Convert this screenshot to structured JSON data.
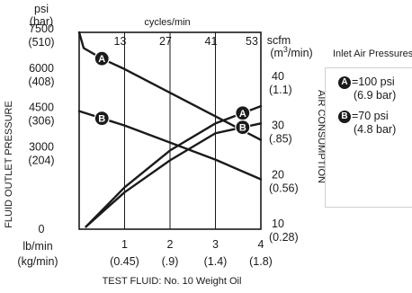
{
  "chart_data": {
    "type": "line",
    "title": "",
    "left_axis": {
      "unit_top": "psi",
      "unit_bottom": "(bar)",
      "title": "FLUID OUTLET PRESSURE",
      "ticks": [
        {
          "value": 0,
          "psi": "0",
          "bar": ""
        },
        {
          "value": 3000,
          "psi": "3000",
          "bar": "(204)"
        },
        {
          "value": 4500,
          "psi": "4500",
          "bar": "(306)"
        },
        {
          "value": 6000,
          "psi": "6000",
          "bar": "(408)"
        },
        {
          "value": 7500,
          "psi": "7500",
          "bar": "(510)"
        }
      ],
      "range": [
        0,
        7500
      ]
    },
    "right_axis": {
      "unit_top": "scfm",
      "unit_bottom_prefix": "(m",
      "unit_bottom_sup": "3",
      "unit_bottom_suffix": "/min)",
      "title": "AIR CONSUMPTION",
      "ticks": [
        {
          "value": 10,
          "scfm": "10",
          "m3": "(0.28)"
        },
        {
          "value": 20,
          "scfm": "20",
          "m3": "(0.56)"
        },
        {
          "value": 30,
          "scfm": "30",
          "m3": "(.85)"
        },
        {
          "value": 40,
          "scfm": "40",
          "m3": "(1.1)"
        }
      ],
      "range": [
        10,
        50
      ]
    },
    "top_axis": {
      "label": "cycles/min",
      "ticks": [
        "13",
        "27",
        "41",
        "53"
      ]
    },
    "bottom_axis": {
      "unit_top": "lb/min",
      "unit_bottom": "(kg/min)",
      "title": "TEST FLUID: No. 10 Weight Oil",
      "ticks": [
        {
          "value": 1,
          "lb": "1",
          "kg": "(0.45)"
        },
        {
          "value": 2,
          "lb": "2",
          "kg": "(.9)"
        },
        {
          "value": 3,
          "lb": "3",
          "kg": "(1.4)"
        },
        {
          "value": 4,
          "lb": "4",
          "kg": "(1.8)"
        }
      ],
      "range": [
        0,
        4
      ]
    },
    "series": [
      {
        "name": "A",
        "axis": "left",
        "points": [
          [
            0.0,
            7500
          ],
          [
            0.1,
            6900
          ],
          [
            0.5,
            6500
          ],
          [
            1.0,
            6100
          ],
          [
            2.0,
            5200
          ],
          [
            3.0,
            4300
          ],
          [
            4.0,
            3400
          ]
        ],
        "marker_at": 0.5
      },
      {
        "name": "B",
        "axis": "left",
        "points": [
          [
            0.0,
            4500
          ],
          [
            1.0,
            3950
          ],
          [
            2.0,
            3300
          ],
          [
            3.0,
            2650
          ],
          [
            4.0,
            1900
          ]
        ],
        "marker_at": 0.5
      },
      {
        "name": "A",
        "axis": "right",
        "points": [
          [
            0.15,
            10.5
          ],
          [
            1.0,
            18.5
          ],
          [
            2.0,
            26.0
          ],
          [
            3.0,
            31.5
          ],
          [
            4.0,
            35.0
          ]
        ],
        "marker_at": 3.6
      },
      {
        "name": "B",
        "axis": "right",
        "points": [
          [
            0.15,
            10.5
          ],
          [
            1.0,
            17.5
          ],
          [
            2.0,
            24.0
          ],
          [
            3.0,
            29.5
          ],
          [
            4.0,
            31.5
          ]
        ],
        "marker_at": 3.6
      }
    ],
    "legend": {
      "title": "Inlet Air Pressures:",
      "placement": "right",
      "items": [
        {
          "badge": "A",
          "text": "=100 psi",
          "sub": "(6.9 bar)"
        },
        {
          "badge": "B",
          "text": "=70 psi",
          "sub": "(4.8 bar)"
        }
      ]
    },
    "grid": true
  }
}
